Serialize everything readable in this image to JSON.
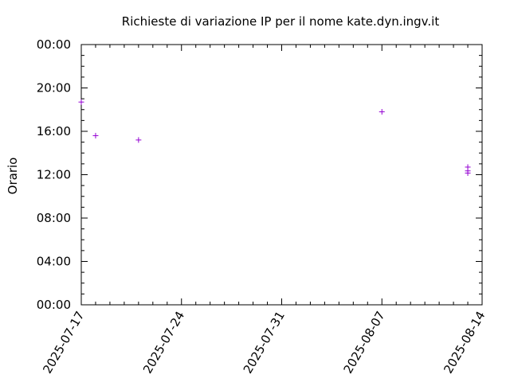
{
  "chart_data": {
    "type": "scatter",
    "title": "Richieste di variazione IP per il nome kate.dyn.ingv.it",
    "xlabel": "",
    "ylabel": "Orario",
    "x_axis": {
      "type": "date",
      "range": [
        "2025-07-17",
        "2025-08-14"
      ],
      "ticks": [
        "2025-07-17",
        "2025-07-24",
        "2025-07-31",
        "2025-08-07",
        "2025-08-14"
      ]
    },
    "y_axis": {
      "type": "time-of-day",
      "range_hours": [
        0,
        24
      ],
      "ticks": [
        {
          "hours": 0,
          "label": "00:00"
        },
        {
          "hours": 4,
          "label": "04:00"
        },
        {
          "hours": 8,
          "label": "08:00"
        },
        {
          "hours": 12,
          "label": "12:00"
        },
        {
          "hours": 16,
          "label": "16:00"
        },
        {
          "hours": 20,
          "label": "20:00"
        },
        {
          "hours": 24,
          "label": "00:00"
        }
      ]
    },
    "grid": false,
    "legend": "none",
    "marker": "+",
    "marker_color": "#9400d3",
    "series": [
      {
        "points": [
          {
            "x": "2025-07-17",
            "y": 18.7
          },
          {
            "x": "2025-07-18",
            "y": 15.6
          },
          {
            "x": "2025-07-21",
            "y": 15.2
          },
          {
            "x": "2025-08-07",
            "y": 17.8
          },
          {
            "x": "2025-08-13",
            "y": 12.7
          },
          {
            "x": "2025-08-13",
            "y": 12.35
          },
          {
            "x": "2025-08-13",
            "y": 12.15
          }
        ]
      }
    ]
  }
}
